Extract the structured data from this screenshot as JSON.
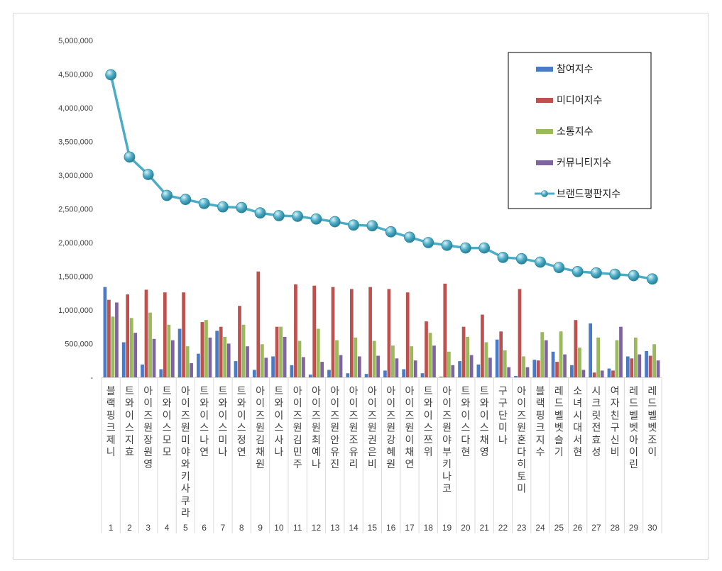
{
  "chart_data": {
    "type": "bar",
    "title": "",
    "xlabel": "",
    "ylabel": "",
    "ylim": [
      0,
      5000000
    ],
    "yticks": [
      0,
      500000,
      1000000,
      1500000,
      2000000,
      2500000,
      3000000,
      3500000,
      4000000,
      4500000,
      5000000
    ],
    "ytick_labels": [
      "-",
      "500,000",
      "1,000,000",
      "1,500,000",
      "2,000,000",
      "2,500,000",
      "3,000,000",
      "3,500,000",
      "4,000,000",
      "4,500,000",
      "5,000,000"
    ],
    "legend_position": "top-right",
    "grid": false,
    "index_labels": [
      "1",
      "2",
      "3",
      "4",
      "5",
      "6",
      "7",
      "8",
      "9",
      "10",
      "11",
      "12",
      "13",
      "14",
      "15",
      "16",
      "17",
      "18",
      "19",
      "20",
      "21",
      "22",
      "23",
      "24",
      "25",
      "26",
      "27",
      "28",
      "29",
      "30"
    ],
    "categories": [
      "블랙핑크 제니",
      "트와이스 지효",
      "아이즈원 장원영",
      "트와이스 모모",
      "아이즈원 미야와키 사쿠라",
      "트와이스 나연",
      "트와이스 미나",
      "트와이스 정연",
      "아이즈원 김채원",
      "트와이스 사나",
      "아이즈원 김민주",
      "아이즈원 최예나",
      "아이즈원 안유진",
      "아이즈원 조유리",
      "아이즈원 권은비",
      "아이즈원 강혜원",
      "아이즈원 이채연",
      "트와이스 쯔위",
      "아이즈원 야부키 나코",
      "트와이스 다현",
      "트와이스 채영",
      "구구단 미나",
      "아이즈원 혼다 히토미",
      "블랙핑크 지수",
      "레드벨벳 슬기",
      "소녀시대 서현",
      "시크릿 전효성",
      "여자친구 신비",
      "레드벨벳 아이린",
      "레드벨벳 조이"
    ],
    "series": [
      {
        "name": "참여지수",
        "type": "bar",
        "color": "#4a7bc8",
        "values": [
          1340000,
          520000,
          190000,
          120000,
          720000,
          350000,
          690000,
          240000,
          110000,
          310000,
          180000,
          40000,
          110000,
          60000,
          50000,
          100000,
          120000,
          60000,
          10000,
          240000,
          190000,
          560000,
          20000,
          260000,
          380000,
          180000,
          800000,
          130000,
          310000,
          390000
        ]
      },
      {
        "name": "미디어지수",
        "type": "bar",
        "color": "#c0504d",
        "values": [
          1150000,
          1230000,
          1300000,
          1260000,
          1260000,
          820000,
          750000,
          1060000,
          1570000,
          750000,
          1380000,
          1360000,
          1340000,
          1310000,
          1340000,
          1310000,
          1260000,
          830000,
          1390000,
          750000,
          930000,
          680000,
          1310000,
          250000,
          230000,
          850000,
          70000,
          100000,
          280000,
          320000
        ]
      },
      {
        "name": "소통지수",
        "type": "bar",
        "color": "#9bbb59",
        "values": [
          900000,
          880000,
          960000,
          780000,
          460000,
          850000,
          600000,
          780000,
          490000,
          750000,
          540000,
          720000,
          550000,
          590000,
          540000,
          470000,
          460000,
          660000,
          380000,
          600000,
          520000,
          400000,
          310000,
          670000,
          680000,
          440000,
          590000,
          550000,
          590000,
          490000
        ]
      },
      {
        "name": "커뮤니티지수",
        "type": "bar",
        "color": "#8064a2",
        "values": [
          1110000,
          660000,
          570000,
          550000,
          210000,
          590000,
          500000,
          460000,
          290000,
          600000,
          300000,
          230000,
          330000,
          310000,
          320000,
          280000,
          250000,
          470000,
          180000,
          330000,
          290000,
          150000,
          150000,
          550000,
          340000,
          110000,
          100000,
          750000,
          340000,
          250000
        ]
      },
      {
        "name": "브랜드평판지수",
        "type": "line",
        "color": "#4bacc6",
        "values": [
          4490000,
          3270000,
          3010000,
          2700000,
          2640000,
          2580000,
          2530000,
          2520000,
          2440000,
          2400000,
          2390000,
          2350000,
          2310000,
          2260000,
          2250000,
          2160000,
          2080000,
          2000000,
          1960000,
          1920000,
          1920000,
          1780000,
          1760000,
          1710000,
          1630000,
          1570000,
          1550000,
          1530000,
          1510000,
          1460000
        ]
      }
    ]
  }
}
